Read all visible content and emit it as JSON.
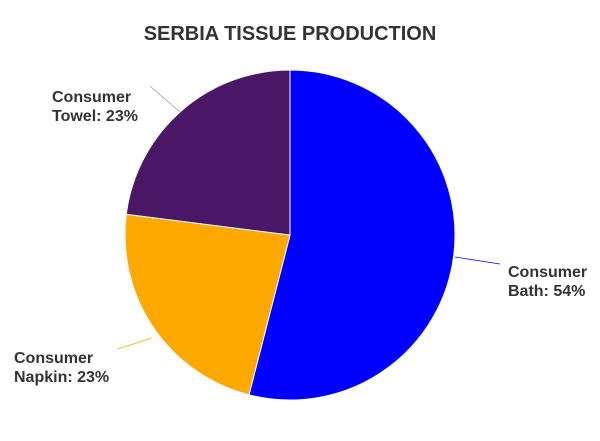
{
  "chart_data": {
    "type": "pie",
    "title": "SERBIA TISSUE PRODUCTION",
    "slices": [
      {
        "name": "Consumer Bath",
        "value": 54,
        "label_lines": [
          "Consumer",
          "Bath: 54%"
        ],
        "color": "#0000ff"
      },
      {
        "name": "Consumer Napkin",
        "value": 23,
        "label_lines": [
          "Consumer",
          "Napkin: 23%"
        ],
        "color": "#ffa800"
      },
      {
        "name": "Consumer Towel",
        "value": 23,
        "label_lines": [
          "Consumer",
          "Towel: 23%"
        ],
        "color": "#4a1766"
      }
    ],
    "legend": "none"
  }
}
